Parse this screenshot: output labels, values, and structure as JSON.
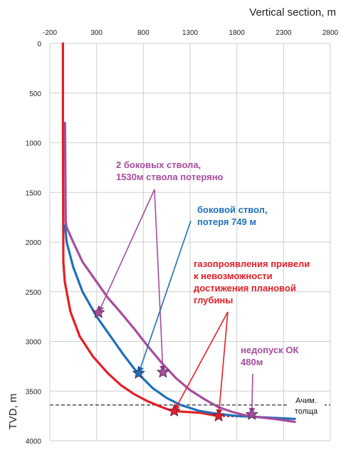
{
  "chart_data": {
    "type": "line",
    "xlabel": "Vertical section, m",
    "ylabel": "TVD, m",
    "x_ticks": [
      -200,
      300,
      800,
      1300,
      1800,
      2300,
      2800
    ],
    "y_ticks": [
      0,
      500,
      1000,
      1500,
      2000,
      2500,
      3000,
      3500,
      4000
    ],
    "xlim": [
      -200,
      2800
    ],
    "ylim": [
      0,
      4000
    ],
    "y_inverted": true,
    "x_axis_position": "top",
    "grid": true,
    "colors": {
      "red": "#e41e26",
      "blue": "#1f6fb8",
      "purple": "#a64d9c",
      "dashed": "#333333"
    },
    "series": [
      {
        "color": "#e41e26",
        "x": [
          -60,
          -60,
          -57,
          -55,
          -40,
          20,
          120,
          260,
          420,
          560,
          700,
          840,
          980,
          1080,
          1180,
          1300,
          1420,
          1560
        ],
        "y": [
          0,
          1000,
          1800,
          2200,
          2400,
          2700,
          2950,
          3150,
          3320,
          3440,
          3530,
          3600,
          3655,
          3690,
          3705,
          3712,
          3720,
          3745
        ]
      },
      {
        "color": "#e41e26",
        "dashed": true,
        "x": [
          1560,
          1650,
          1750,
          1860
        ],
        "y": [
          3745,
          3750,
          3752,
          3755
        ]
      },
      {
        "color": "#1f6fb8",
        "x": [
          -38,
          -30,
          -20,
          50,
          150,
          300,
          450,
          600,
          740,
          900,
          1050,
          1200,
          1400,
          1600,
          1800,
          2000,
          2200,
          2420
        ],
        "y": [
          1830,
          1900,
          2000,
          2250,
          2500,
          2750,
          2950,
          3150,
          3320,
          3470,
          3570,
          3640,
          3700,
          3730,
          3750,
          3760,
          3770,
          3780
        ]
      },
      {
        "color": "#a64d9c",
        "x": [
          -38,
          -30,
          -20,
          50,
          150,
          300,
          420,
          550,
          700,
          850,
          1000,
          1150,
          1300,
          1450,
          1600,
          1750,
          1900,
          2050,
          2200,
          2420
        ],
        "y": [
          800,
          1800,
          1850,
          2000,
          2200,
          2400,
          2560,
          2700,
          2870,
          3050,
          3220,
          3370,
          3490,
          3580,
          3660,
          3710,
          3745,
          3765,
          3780,
          3810
        ]
      }
    ],
    "markers": [
      {
        "color": "#a64d9c",
        "x": 320,
        "y": 2710
      },
      {
        "color": "#a64d9c",
        "x": 1010,
        "y": 3310
      },
      {
        "color": "#a64d9c",
        "x": 1960,
        "y": 3735
      },
      {
        "color": "#1f6fb8",
        "x": 750,
        "y": 3320
      },
      {
        "color": "#e41e26",
        "x": 1130,
        "y": 3700
      },
      {
        "color": "#e41e26",
        "x": 1605,
        "y": 3750
      }
    ],
    "target_line": {
      "y": 3640,
      "label_line1": "Ачим.",
      "label_line2": "толща"
    },
    "annotations": [
      {
        "color": "#a64d9c",
        "lines": [
          "2 боковых ствола,",
          "1530м ствола потеряно"
        ],
        "arrows_to": [
          [
            320,
            2710
          ],
          [
            1010,
            3310
          ]
        ]
      },
      {
        "color": "#1f6fb8",
        "lines": [
          "боковой ствол,",
          "потеря 749 м"
        ],
        "arrows_to": [
          [
            750,
            3320
          ]
        ]
      },
      {
        "color": "#e41e26",
        "lines": [
          "газопроявления привели",
          "к невозможности",
          "достижения плановой",
          "глубины"
        ],
        "arrows_to": [
          [
            1130,
            3700
          ],
          [
            1605,
            3750
          ]
        ]
      },
      {
        "color": "#a64d9c",
        "lines": [
          "недопуск ОК",
          "480м"
        ],
        "arrows_to": [
          [
            1960,
            3735
          ]
        ]
      }
    ]
  }
}
